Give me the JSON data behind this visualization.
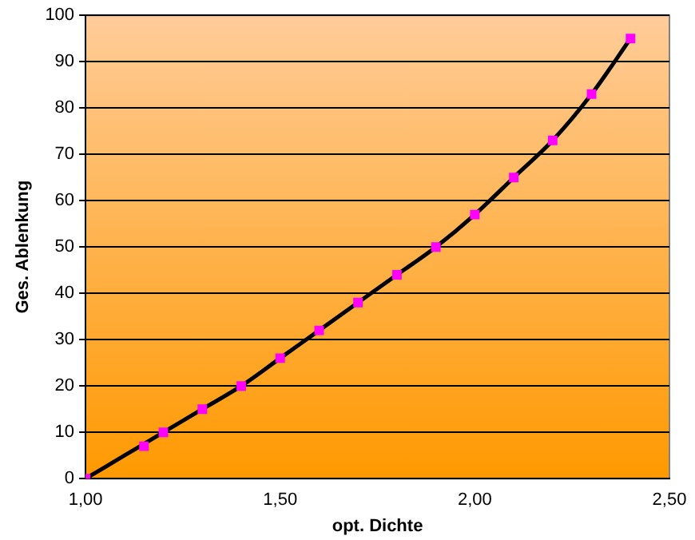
{
  "chart_data": {
    "type": "scatter",
    "xlabel": "opt. Dichte",
    "ylabel": "Ges. Ablenkung",
    "x": [
      1.0,
      1.15,
      1.2,
      1.3,
      1.4,
      1.5,
      1.6,
      1.7,
      1.8,
      1.9,
      2.0,
      2.1,
      2.2,
      2.3,
      2.4
    ],
    "series": [
      {
        "type": "scatter",
        "color": "#ff00ff",
        "marker": "square",
        "values": [
          0,
          7,
          10,
          15,
          20,
          26,
          32,
          38,
          44,
          50,
          57,
          65,
          73,
          83,
          95
        ]
      },
      {
        "type": "line",
        "color": "#000000",
        "marker": "none",
        "x": [
          1.0,
          1.1,
          1.2,
          1.3,
          1.4,
          1.5,
          1.6,
          1.7,
          1.8,
          1.9,
          2.0,
          2.1,
          2.2,
          2.3,
          2.4
        ],
        "values": [
          0,
          5,
          10,
          15,
          20,
          26,
          32,
          38,
          44,
          50,
          57,
          65,
          73,
          83,
          95
        ]
      }
    ],
    "xlim": [
      1.0,
      2.5
    ],
    "xticks": [
      {
        "value": 1.0,
        "label": "1,00"
      },
      {
        "value": 1.5,
        "label": "1,50"
      },
      {
        "value": 2.0,
        "label": "2,00"
      },
      {
        "value": 2.5,
        "label": "2,50"
      }
    ],
    "ylim": [
      0,
      100
    ],
    "yticks": [
      0,
      10,
      20,
      30,
      40,
      50,
      60,
      70,
      80,
      90,
      100
    ],
    "grid": "y",
    "legend": false
  }
}
